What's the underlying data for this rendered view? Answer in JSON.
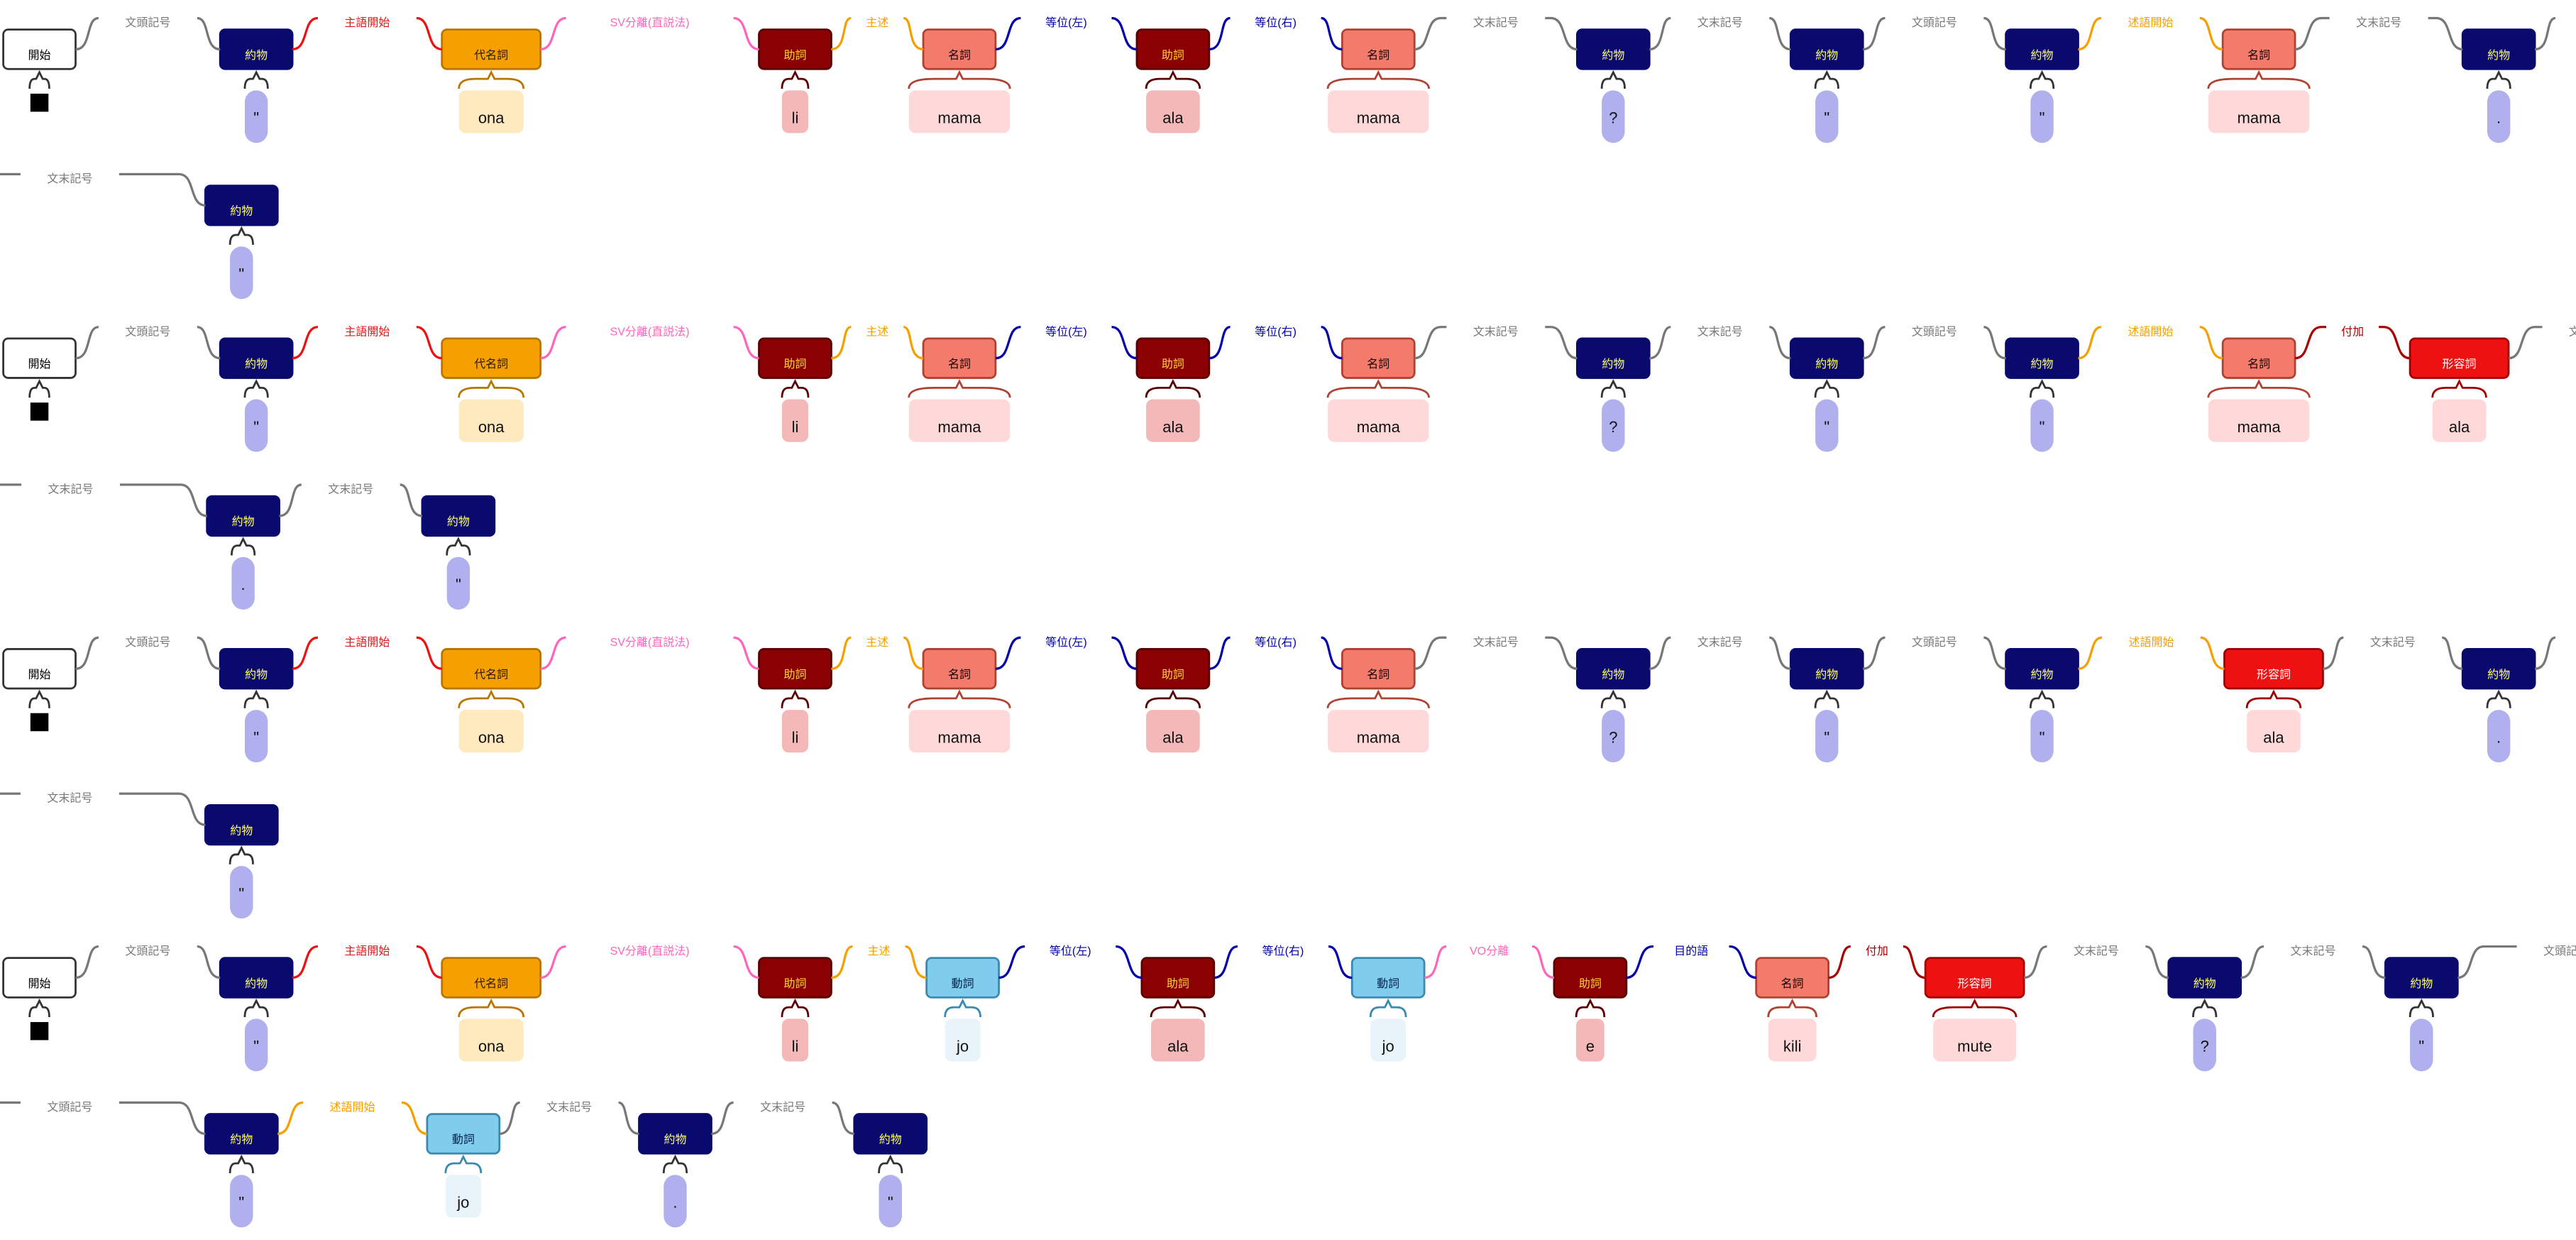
{
  "colors": {
    "background": "#ffffff",
    "wire": "#666666",
    "start_fill": "#ffffff",
    "token_bg_pronoun": "#ffeac0",
    "token_bg_verb": "#e8f4fa",
    "token_bg_default": "#ffd9d9",
    "token_bg_particle": "#f4b8b8",
    "token_bg_punct": "#b0b0ef"
  },
  "pos": {
    "start": {
      "label": "開始",
      "fill": "#ffffff",
      "stroke": "#333333",
      "text": "#000000"
    },
    "symbol": {
      "label": "約物",
      "fill": "#0a0a6e",
      "stroke": "#0a0a6e",
      "text": "#ffff66"
    },
    "pronoun": {
      "label": "代名詞",
      "fill": "#f5a000",
      "stroke": "#b87500",
      "text": "#2a1a00"
    },
    "particle": {
      "label": "助詞",
      "fill": "#8b0000",
      "stroke": "#5a0000",
      "text": "#ffd23a"
    },
    "noun": {
      "label": "名詞",
      "fill": "#f37b6c",
      "stroke": "#b04030",
      "text": "#1a0000"
    },
    "verb": {
      "label": "動詞",
      "fill": "#80ccec",
      "stroke": "#3a8ab0",
      "text": "#00224a"
    },
    "adj": {
      "label": "形容詞",
      "fill": "#ee1111",
      "stroke": "#a00000",
      "text": "#ffffff"
    }
  },
  "relations": {
    "bunto": {
      "label": "文頭記号",
      "color": "#777777"
    },
    "bunmatsu": {
      "label": "文末記号",
      "color": "#777777"
    },
    "shugo": {
      "label": "主語開始",
      "color": "#ee1111"
    },
    "sv": {
      "label": "SV分離(直説法)",
      "color": "#ff66bb"
    },
    "shujutsu": {
      "label": "主述",
      "color": "#f5a000"
    },
    "tol": {
      "label": "等位(左)",
      "color": "#0000aa"
    },
    "tor": {
      "label": "等位(右)",
      "color": "#0000aa"
    },
    "jutsugo": {
      "label": "述語開始",
      "color": "#f5a000"
    },
    "fuka": {
      "label": "付加",
      "color": "#aa0000"
    },
    "vo": {
      "label": "VO分離",
      "color": "#ff66bb"
    },
    "mokuteki": {
      "label": "目的語",
      "color": "#0000aa"
    }
  },
  "sentences": [
    {
      "rows": [
        {
          "nodes": [
            {
              "pos": "start",
              "word": "■",
              "tok": "start"
            },
            {
              "pos": "symbol",
              "word": "\"",
              "tok": "punct",
              "rel": "bunto"
            },
            {
              "pos": "pronoun",
              "word": "ona",
              "tok": "pronoun",
              "rel": "shugo"
            },
            {
              "pos": "particle",
              "word": "li",
              "tok": "particle",
              "rel": "sv"
            },
            {
              "pos": "noun",
              "word": "mama",
              "tok": "default",
              "rel": "shujutsu"
            },
            {
              "pos": "particle",
              "word": "ala",
              "tok": "particle",
              "rel": "tol"
            },
            {
              "pos": "noun",
              "word": "mama",
              "tok": "default",
              "rel": "tor"
            },
            {
              "pos": "symbol",
              "word": "?",
              "tok": "punct",
              "rel": "bunmatsu"
            },
            {
              "pos": "symbol",
              "word": "\"",
              "tok": "punct",
              "rel": "bunmatsu"
            },
            {
              "pos": "symbol",
              "word": "\"",
              "tok": "punct",
              "rel": "bunto"
            },
            {
              "pos": "noun",
              "word": "mama",
              "tok": "default",
              "rel": "jutsugo"
            },
            {
              "pos": "symbol",
              "word": ".",
              "tok": "punct",
              "rel": "bunmatsu"
            }
          ],
          "trailing": "bunmatsu"
        },
        {
          "nodes": [
            {
              "pos": "symbol",
              "word": "\"",
              "tok": "punct",
              "rel": "bunmatsu"
            }
          ]
        }
      ]
    },
    {
      "rows": [
        {
          "nodes": [
            {
              "pos": "start",
              "word": "■",
              "tok": "start"
            },
            {
              "pos": "symbol",
              "word": "\"",
              "tok": "punct",
              "rel": "bunto"
            },
            {
              "pos": "pronoun",
              "word": "ona",
              "tok": "pronoun",
              "rel": "shugo"
            },
            {
              "pos": "particle",
              "word": "li",
              "tok": "particle",
              "rel": "sv"
            },
            {
              "pos": "noun",
              "word": "mama",
              "tok": "default",
              "rel": "shujutsu"
            },
            {
              "pos": "particle",
              "word": "ala",
              "tok": "particle",
              "rel": "tol"
            },
            {
              "pos": "noun",
              "word": "mama",
              "tok": "default",
              "rel": "tor"
            },
            {
              "pos": "symbol",
              "word": "?",
              "tok": "punct",
              "rel": "bunmatsu"
            },
            {
              "pos": "symbol",
              "word": "\"",
              "tok": "punct",
              "rel": "bunmatsu"
            },
            {
              "pos": "symbol",
              "word": "\"",
              "tok": "punct",
              "rel": "bunto"
            },
            {
              "pos": "noun",
              "word": "mama",
              "tok": "default",
              "rel": "jutsugo"
            },
            {
              "pos": "adj",
              "word": "ala",
              "tok": "default",
              "rel": "fuka"
            }
          ],
          "trailing": "bunmatsu"
        },
        {
          "nodes": [
            {
              "pos": "symbol",
              "word": ".",
              "tok": "punct",
              "rel": "bunmatsu"
            },
            {
              "pos": "symbol",
              "word": "\"",
              "tok": "punct",
              "rel": "bunmatsu"
            }
          ]
        }
      ]
    },
    {
      "rows": [
        {
          "nodes": [
            {
              "pos": "start",
              "word": "■",
              "tok": "start"
            },
            {
              "pos": "symbol",
              "word": "\"",
              "tok": "punct",
              "rel": "bunto"
            },
            {
              "pos": "pronoun",
              "word": "ona",
              "tok": "pronoun",
              "rel": "shugo"
            },
            {
              "pos": "particle",
              "word": "li",
              "tok": "particle",
              "rel": "sv"
            },
            {
              "pos": "noun",
              "word": "mama",
              "tok": "default",
              "rel": "shujutsu"
            },
            {
              "pos": "particle",
              "word": "ala",
              "tok": "particle",
              "rel": "tol"
            },
            {
              "pos": "noun",
              "word": "mama",
              "tok": "default",
              "rel": "tor"
            },
            {
              "pos": "symbol",
              "word": "?",
              "tok": "punct",
              "rel": "bunmatsu"
            },
            {
              "pos": "symbol",
              "word": "\"",
              "tok": "punct",
              "rel": "bunmatsu"
            },
            {
              "pos": "symbol",
              "word": "\"",
              "tok": "punct",
              "rel": "bunto"
            },
            {
              "pos": "adj",
              "word": "ala",
              "tok": "default",
              "rel": "jutsugo"
            },
            {
              "pos": "symbol",
              "word": ".",
              "tok": "punct",
              "rel": "bunmatsu"
            }
          ],
          "trailing": "bunmatsu"
        },
        {
          "nodes": [
            {
              "pos": "symbol",
              "word": "\"",
              "tok": "punct",
              "rel": "bunmatsu"
            }
          ]
        }
      ]
    },
    {
      "rows": [
        {
          "nodes": [
            {
              "pos": "start",
              "word": "■",
              "tok": "start"
            },
            {
              "pos": "symbol",
              "word": "\"",
              "tok": "punct",
              "rel": "bunto"
            },
            {
              "pos": "pronoun",
              "word": "ona",
              "tok": "pronoun",
              "rel": "shugo"
            },
            {
              "pos": "particle",
              "word": "li",
              "tok": "particle",
              "rel": "sv"
            },
            {
              "pos": "verb",
              "word": "jo",
              "tok": "verb",
              "rel": "shujutsu"
            },
            {
              "pos": "particle",
              "word": "ala",
              "tok": "particle",
              "rel": "tol"
            },
            {
              "pos": "verb",
              "word": "jo",
              "tok": "verb",
              "rel": "tor"
            },
            {
              "pos": "particle",
              "word": "e",
              "tok": "particle",
              "rel": "vo"
            },
            {
              "pos": "noun",
              "word": "kili",
              "tok": "default",
              "rel": "mokuteki"
            },
            {
              "pos": "adj",
              "word": "mute",
              "tok": "default",
              "rel": "fuka"
            },
            {
              "pos": "symbol",
              "word": "?",
              "tok": "punct",
              "rel": "bunmatsu"
            },
            {
              "pos": "symbol",
              "word": "\"",
              "tok": "punct",
              "rel": "bunmatsu"
            }
          ],
          "trailing": "bunto"
        },
        {
          "nodes": [
            {
              "pos": "symbol",
              "word": "\"",
              "tok": "punct",
              "rel": "bunto"
            },
            {
              "pos": "verb",
              "word": "jo",
              "tok": "verb",
              "rel": "jutsugo"
            },
            {
              "pos": "symbol",
              "word": ".",
              "tok": "punct",
              "rel": "bunmatsu"
            },
            {
              "pos": "symbol",
              "word": "\"",
              "tok": "punct",
              "rel": "bunmatsu"
            }
          ]
        }
      ]
    }
  ]
}
